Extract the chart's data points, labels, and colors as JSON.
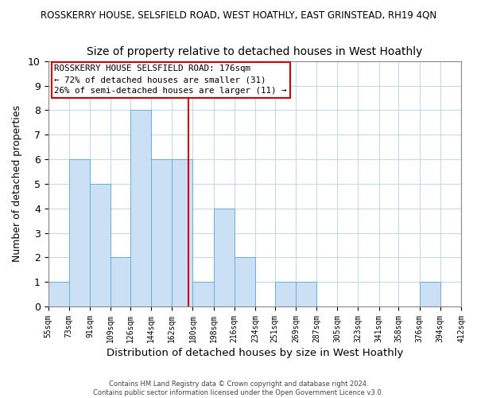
{
  "title_line1": "ROSSKERRY HOUSE, SELSFIELD ROAD, WEST HOATHLY, EAST GRINSTEAD, RH19 4QN",
  "title_line2": "Size of property relative to detached houses in West Hoathly",
  "xlabel": "Distribution of detached houses by size in West Hoathly",
  "ylabel": "Number of detached properties",
  "bin_edges": [
    55,
    73,
    91,
    109,
    126,
    144,
    162,
    180,
    198,
    216,
    234,
    251,
    269,
    287,
    305,
    323,
    341,
    358,
    376,
    394,
    412
  ],
  "bin_labels": [
    "55sqm",
    "73sqm",
    "91sqm",
    "109sqm",
    "126sqm",
    "144sqm",
    "162sqm",
    "180sqm",
    "198sqm",
    "216sqm",
    "234sqm",
    "251sqm",
    "269sqm",
    "287sqm",
    "305sqm",
    "323sqm",
    "341sqm",
    "358sqm",
    "376sqm",
    "394sqm",
    "412sqm"
  ],
  "counts": [
    1,
    6,
    5,
    2,
    8,
    6,
    6,
    1,
    4,
    2,
    0,
    1,
    1,
    0,
    0,
    0,
    0,
    0,
    1,
    0
  ],
  "bar_color": "#cce0f5",
  "bar_edge_color": "#6aaed6",
  "vline_x": 176,
  "vline_color": "#cc0000",
  "ylim": [
    0,
    10
  ],
  "yticks": [
    0,
    1,
    2,
    3,
    4,
    5,
    6,
    7,
    8,
    9,
    10
  ],
  "annotation_title": "ROSSKERRY HOUSE SELSFIELD ROAD: 176sqm",
  "annotation_line2": "← 72% of detached houses are smaller (31)",
  "annotation_line3": "26% of semi-detached houses are larger (11) →",
  "annotation_box_color": "#ffffff",
  "annotation_box_edge": "#cc0000",
  "footer_line1": "Contains HM Land Registry data © Crown copyright and database right 2024.",
  "footer_line2": "Contains public sector information licensed under the Open Government Licence v3.0.",
  "background_color": "#ffffff",
  "grid_color": "#c8d8ec"
}
